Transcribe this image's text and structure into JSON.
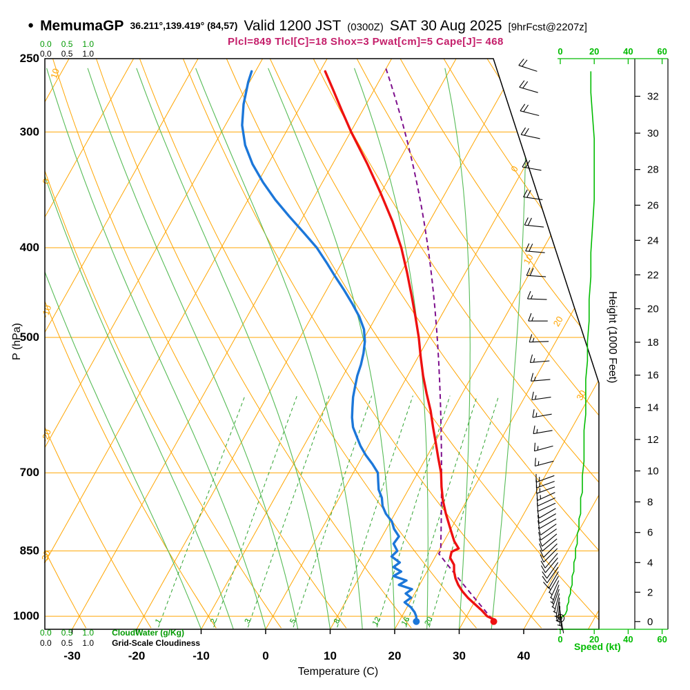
{
  "title": {
    "bullet": "●",
    "station": "MemumaGP",
    "coords": "36.211°,139.419° (84,57)",
    "valid": "Valid 1200 JST",
    "valid_z": "(0300Z)",
    "valid_date": "SAT 30 Aug 2025",
    "fcst": "[9hrFcst@2207z]"
  },
  "params_line": "Plcl=849 Tlcl[C]=18 Shox=3 Pwat[cm]=5 Cape[J]= 468",
  "axes": {
    "pressure_label": "P (hPa)",
    "temp_label": "Temperature (C)",
    "height_label": "Height (1000 Feet)",
    "speed_label": "Speed (kt)",
    "cloudwater_label": "CloudWater (g/Kg)",
    "cloudiness_label": "Grid-Scale Cloudiness",
    "cloud_scale": [
      "0.0",
      "0.5",
      "1.0"
    ]
  },
  "colors": {
    "orange": "#FFA500",
    "moist_green": "#55BB55",
    "mixing_green": "#2FA32F",
    "bright_green": "#00BB00",
    "label_green": "#009900",
    "temperature_red": "#EE1111",
    "dewpoint_blue": "#1C77D9",
    "parcel_purple": "#7D0E8C",
    "params_text": "#C41E6A",
    "black": "#000000"
  },
  "chart_data": {
    "type": "line",
    "subtype": "skew-t log-p thermodynamic sounding",
    "pressure_axis_hPa": {
      "ticks": [
        250,
        300,
        400,
        500,
        700,
        850,
        1000
      ],
      "range": [
        250,
        1033
      ],
      "scale": "log"
    },
    "temperature_axis_c": {
      "ticks": [
        -30,
        -20,
        -10,
        0,
        10,
        20,
        30,
        40
      ]
    },
    "height_axis_kft": {
      "ticks": [
        0,
        2,
        4,
        6,
        8,
        10,
        12,
        14,
        16,
        18,
        20,
        22,
        24,
        26,
        28,
        30,
        32
      ]
    },
    "speed_axis_kt": {
      "ticks": [
        0,
        20,
        40,
        60
      ]
    },
    "isotherm_step_c": 10,
    "isotherm_labels_right_c": [
      0,
      10,
      20,
      30
    ],
    "dry_adiabat_labels_c": [
      10,
      0,
      -10,
      -20,
      -30
    ],
    "mixing_ratio_lines_g_kg": [
      1,
      2,
      3,
      5,
      8,
      12,
      16,
      20
    ],
    "moist_adiabat_start_temps_c": [
      -10,
      -5,
      0,
      5,
      10,
      15,
      20,
      25,
      30,
      35
    ],
    "indices": {
      "plcl_hPa": 849,
      "tlcl_c": 18,
      "showalter": 3,
      "pwat_cm": 5,
      "cape_j": 468
    },
    "surface_dots": {
      "temperature_c": 34.5,
      "dewpoint_c": 22.5
    },
    "parcel": {
      "surface_p_hPa": 1008,
      "surface_t_c": 34.3,
      "lcl_p_hPa": 849,
      "top_p_hPa": 255
    },
    "temperature_profile_p_T": [
      [
        1008,
        34.5
      ],
      [
        1000,
        33.2
      ],
      [
        985,
        31.8
      ],
      [
        970,
        30.2
      ],
      [
        955,
        28.6
      ],
      [
        940,
        27.2
      ],
      [
        925,
        26
      ],
      [
        910,
        25
      ],
      [
        895,
        24.2
      ],
      [
        880,
        23.6
      ],
      [
        865,
        22.4
      ],
      [
        852,
        22.1
      ],
      [
        845,
        22.9
      ],
      [
        830,
        21.6
      ],
      [
        815,
        20.6
      ],
      [
        800,
        19.6
      ],
      [
        775,
        17.9
      ],
      [
        750,
        16.3
      ],
      [
        725,
        14.9
      ],
      [
        700,
        13.6
      ],
      [
        675,
        11.9
      ],
      [
        650,
        10.2
      ],
      [
        625,
        8.4
      ],
      [
        600,
        6.6
      ],
      [
        575,
        4.5
      ],
      [
        550,
        2.4
      ],
      [
        525,
        0.4
      ],
      [
        500,
        -1.6
      ],
      [
        475,
        -3.9
      ],
      [
        450,
        -6.4
      ],
      [
        425,
        -9.1
      ],
      [
        400,
        -12.1
      ],
      [
        375,
        -15.7
      ],
      [
        350,
        -19.9
      ],
      [
        325,
        -24.6
      ],
      [
        300,
        -29.9
      ],
      [
        285,
        -33.1
      ],
      [
        270,
        -36.4
      ],
      [
        258,
        -39.2
      ]
    ],
    "dewpoint_profile_p_Td": [
      [
        1008,
        22.5
      ],
      [
        1000,
        22.2
      ],
      [
        990,
        21.6
      ],
      [
        978,
        20.6
      ],
      [
        966,
        19.2
      ],
      [
        955,
        19.8
      ],
      [
        945,
        18.6
      ],
      [
        935,
        19.2
      ],
      [
        925,
        16.8
      ],
      [
        915,
        17.6
      ],
      [
        905,
        15.2
      ],
      [
        895,
        16
      ],
      [
        885,
        14.4
      ],
      [
        875,
        15
      ],
      [
        862,
        13.2
      ],
      [
        850,
        13.6
      ],
      [
        835,
        12.4
      ],
      [
        820,
        12.6
      ],
      [
        805,
        11.2
      ],
      [
        790,
        10.2
      ],
      [
        775,
        8.6
      ],
      [
        760,
        7.4
      ],
      [
        745,
        6.6
      ],
      [
        730,
        5.4
      ],
      [
        715,
        4.6
      ],
      [
        700,
        3.8
      ],
      [
        685,
        2.2
      ],
      [
        670,
        0.4
      ],
      [
        655,
        -1.2
      ],
      [
        640,
        -2.6
      ],
      [
        625,
        -4
      ],
      [
        610,
        -5
      ],
      [
        595,
        -5.8
      ],
      [
        580,
        -6.6
      ],
      [
        565,
        -7.2
      ],
      [
        550,
        -7.8
      ],
      [
        535,
        -8.2
      ],
      [
        520,
        -8.8
      ],
      [
        505,
        -9.6
      ],
      [
        490,
        -10.8
      ],
      [
        475,
        -12.6
      ],
      [
        460,
        -14.8
      ],
      [
        445,
        -17.2
      ],
      [
        430,
        -19.8
      ],
      [
        415,
        -22.4
      ],
      [
        400,
        -25.2
      ],
      [
        385,
        -28.6
      ],
      [
        370,
        -32.2
      ],
      [
        355,
        -35.8
      ],
      [
        340,
        -39.2
      ],
      [
        325,
        -42.4
      ],
      [
        310,
        -45.2
      ],
      [
        295,
        -47.4
      ],
      [
        280,
        -49
      ],
      [
        265,
        -50.2
      ],
      [
        258,
        -50.6
      ]
    ],
    "wind_profile_p_kt_dir": [
      [
        1005,
        0,
        0
      ],
      [
        995,
        3,
        170
      ],
      [
        985,
        4,
        175
      ],
      [
        975,
        4,
        180
      ],
      [
        965,
        5,
        185
      ],
      [
        955,
        5,
        190
      ],
      [
        945,
        6,
        195
      ],
      [
        935,
        6,
        200
      ],
      [
        925,
        7,
        200
      ],
      [
        915,
        7,
        205
      ],
      [
        905,
        7,
        210
      ],
      [
        895,
        8,
        210
      ],
      [
        885,
        8,
        215
      ],
      [
        875,
        8,
        215
      ],
      [
        865,
        9,
        220
      ],
      [
        855,
        9,
        220
      ],
      [
        845,
        9,
        225
      ],
      [
        835,
        10,
        225
      ],
      [
        825,
        10,
        230
      ],
      [
        815,
        10,
        230
      ],
      [
        805,
        11,
        235
      ],
      [
        795,
        11,
        235
      ],
      [
        785,
        11,
        240
      ],
      [
        775,
        12,
        240
      ],
      [
        765,
        12,
        240
      ],
      [
        755,
        12,
        245
      ],
      [
        745,
        12,
        245
      ],
      [
        735,
        13,
        245
      ],
      [
        725,
        13,
        250
      ],
      [
        715,
        13,
        250
      ],
      [
        705,
        13,
        250
      ],
      [
        680,
        14,
        255
      ],
      [
        655,
        14,
        255
      ],
      [
        630,
        14,
        260
      ],
      [
        605,
        15,
        260
      ],
      [
        580,
        15,
        262
      ],
      [
        555,
        15,
        265
      ],
      [
        530,
        16,
        265
      ],
      [
        505,
        16,
        268
      ],
      [
        480,
        17,
        270
      ],
      [
        455,
        17,
        272
      ],
      [
        430,
        18,
        274
      ],
      [
        405,
        18,
        275
      ],
      [
        380,
        19,
        276
      ],
      [
        355,
        20,
        278
      ],
      [
        330,
        20,
        280
      ],
      [
        305,
        20,
        282
      ],
      [
        288,
        19,
        284
      ],
      [
        272,
        18,
        286
      ],
      [
        258,
        18,
        288
      ]
    ]
  }
}
